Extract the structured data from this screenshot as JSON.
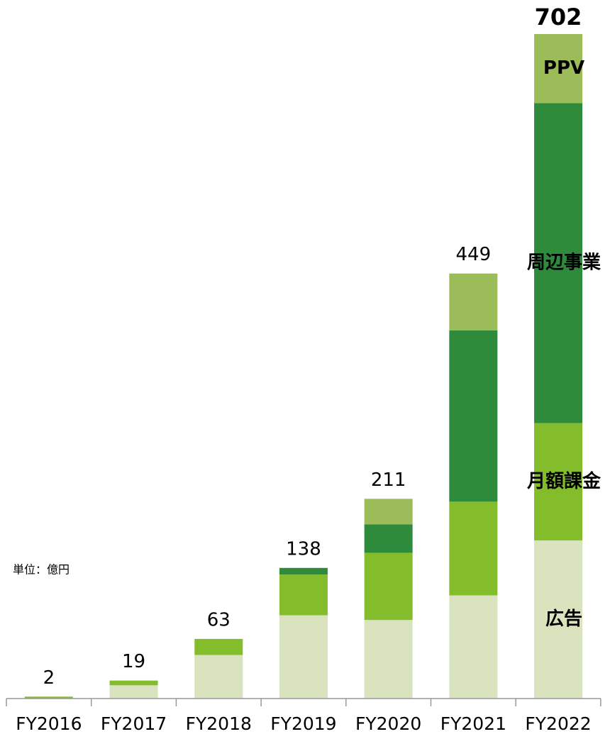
{
  "chart_data": {
    "type": "stacked_bar",
    "unit_note": "単位：億円",
    "categories": [
      "FY2016",
      "FY2017",
      "FY2018",
      "FY2019",
      "FY2020",
      "FY2021",
      "FY2022"
    ],
    "series": [
      {
        "name": "広告",
        "color": "#d9e4bf",
        "values": [
          0,
          14,
          46,
          88,
          83,
          109,
          167
        ]
      },
      {
        "name": "月額課金",
        "color": "#84bd2b",
        "values": [
          2,
          5,
          17,
          43,
          71,
          99,
          124
        ]
      },
      {
        "name": "周辺事業",
        "color": "#2e8b3c",
        "values": [
          0,
          0,
          0,
          7,
          30,
          181,
          338
        ]
      },
      {
        "name": "PPV",
        "color": "#9cbb59",
        "values": [
          0,
          0,
          0,
          0,
          27,
          60,
          73
        ]
      }
    ],
    "totals": [
      2,
      19,
      63,
      138,
      211,
      449,
      702
    ]
  }
}
